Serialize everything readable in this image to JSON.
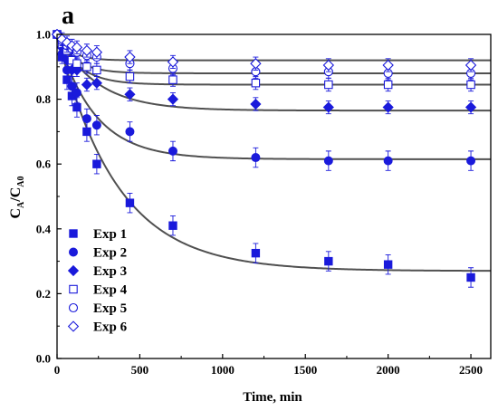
{
  "panel_label": "a",
  "chart_data": {
    "type": "scatter",
    "title": "",
    "xlabel": "Time, min",
    "ylabel": "C_A/C_A0",
    "ylabel_parts": {
      "base": "C",
      "sub1": "A",
      "sep": "/C",
      "sub2": "A0"
    },
    "xlim": [
      0,
      2620
    ],
    "ylim": [
      0.0,
      1.0
    ],
    "xticks": [
      0,
      500,
      1000,
      1500,
      2000,
      2500
    ],
    "xtick_labels": [
      "0",
      "500",
      "1000",
      "1500",
      "2000",
      "2500"
    ],
    "yticks": [
      0.0,
      0.2,
      0.4,
      0.6,
      0.8,
      1.0
    ],
    "ytick_labels": [
      "0.0",
      "0.2",
      "0.4",
      "0.6",
      "0.8",
      "1.0"
    ],
    "grid": false,
    "legend_position": "bottom-left",
    "marker_color": "#1a1adb",
    "fit_color": "#505050",
    "series": [
      {
        "name": "Exp 1",
        "marker": "filled-square",
        "x": [
          0,
          30,
          60,
          90,
          120,
          180,
          240,
          440,
          700,
          1200,
          1640,
          2000,
          2500
        ],
        "y": [
          1.0,
          0.93,
          0.86,
          0.81,
          0.775,
          0.7,
          0.6,
          0.48,
          0.41,
          0.325,
          0.3,
          0.29,
          0.25
        ],
        "err": [
          0.01,
          0.02,
          0.03,
          0.03,
          0.03,
          0.03,
          0.03,
          0.03,
          0.03,
          0.03,
          0.03,
          0.03,
          0.03
        ],
        "fit": {
          "a": 0.73,
          "k": 0.0028
        }
      },
      {
        "name": "Exp 2",
        "marker": "filled-circle",
        "x": [
          0,
          30,
          60,
          90,
          120,
          180,
          240,
          440,
          700,
          1200,
          1640,
          2000,
          2500
        ],
        "y": [
          1.0,
          0.94,
          0.89,
          0.84,
          0.82,
          0.74,
          0.72,
          0.7,
          0.64,
          0.62,
          0.61,
          0.61,
          0.61
        ],
        "err": [
          0.01,
          0.02,
          0.03,
          0.03,
          0.03,
          0.03,
          0.03,
          0.03,
          0.03,
          0.03,
          0.03,
          0.03,
          0.03
        ],
        "fit": {
          "a": 0.385,
          "k": 0.0045
        }
      },
      {
        "name": "Exp 3",
        "marker": "filled-diamond",
        "x": [
          0,
          30,
          60,
          90,
          120,
          180,
          240,
          440,
          700,
          1200,
          1640,
          2000,
          2500
        ],
        "y": [
          1.0,
          0.96,
          0.92,
          0.89,
          0.89,
          0.845,
          0.85,
          0.815,
          0.8,
          0.785,
          0.775,
          0.775,
          0.775
        ],
        "err": [
          0.01,
          0.02,
          0.02,
          0.02,
          0.02,
          0.02,
          0.02,
          0.02,
          0.02,
          0.02,
          0.02,
          0.02,
          0.02
        ],
        "fit": {
          "a": 0.235,
          "k": 0.0042
        }
      },
      {
        "name": "Exp 4",
        "marker": "open-square",
        "x": [
          0,
          30,
          60,
          90,
          120,
          180,
          240,
          440,
          700,
          1200,
          1640,
          2000,
          2500
        ],
        "y": [
          1.0,
          0.97,
          0.95,
          0.92,
          0.91,
          0.9,
          0.89,
          0.87,
          0.86,
          0.85,
          0.845,
          0.845,
          0.845
        ],
        "err": [
          0.01,
          0.02,
          0.02,
          0.02,
          0.02,
          0.02,
          0.02,
          0.02,
          0.02,
          0.02,
          0.02,
          0.02,
          0.02
        ],
        "fit": {
          "a": 0.155,
          "k": 0.0075
        }
      },
      {
        "name": "Exp 5",
        "marker": "open-circle",
        "x": [
          0,
          30,
          60,
          90,
          120,
          180,
          240,
          440,
          700,
          1200,
          1640,
          2000,
          2500
        ],
        "y": [
          1.0,
          0.98,
          0.965,
          0.955,
          0.945,
          0.935,
          0.93,
          0.91,
          0.895,
          0.885,
          0.885,
          0.88,
          0.88
        ],
        "err": [
          0.01,
          0.02,
          0.02,
          0.02,
          0.02,
          0.02,
          0.02,
          0.02,
          0.02,
          0.02,
          0.02,
          0.02,
          0.02
        ],
        "fit": {
          "a": 0.12,
          "k": 0.009
        }
      },
      {
        "name": "Exp 6",
        "marker": "open-diamond",
        "x": [
          0,
          30,
          60,
          90,
          120,
          180,
          240,
          440,
          700,
          1200,
          1640,
          2000,
          2500
        ],
        "y": [
          1.0,
          0.985,
          0.975,
          0.965,
          0.96,
          0.95,
          0.945,
          0.93,
          0.915,
          0.91,
          0.905,
          0.905,
          0.905
        ],
        "err": [
          0.01,
          0.02,
          0.02,
          0.02,
          0.02,
          0.02,
          0.02,
          0.02,
          0.02,
          0.02,
          0.02,
          0.02,
          0.02
        ],
        "fit": {
          "a": 0.08,
          "k": 0.012
        }
      }
    ]
  }
}
